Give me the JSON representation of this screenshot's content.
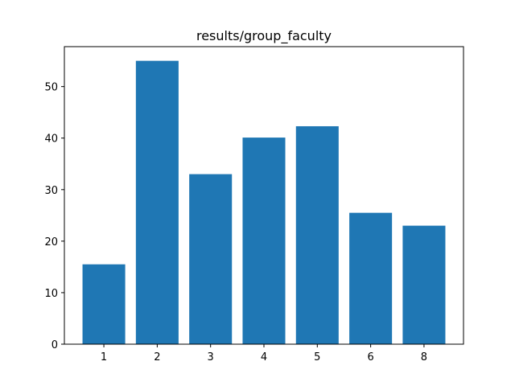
{
  "chart_data": {
    "type": "bar",
    "title": "results/group_faculty",
    "xlabel": "",
    "ylabel": "",
    "categories": [
      "1",
      "2",
      "3",
      "4",
      "5",
      "6",
      "8"
    ],
    "values": [
      15.5,
      55.0,
      33.0,
      40.1,
      42.3,
      25.5,
      23.0
    ],
    "ylim": [
      0,
      57.75
    ],
    "yticks": [
      0,
      10,
      20,
      30,
      40,
      50
    ],
    "grid": false,
    "bar_color": "#1f77b4",
    "axis_color": "#000000"
  }
}
